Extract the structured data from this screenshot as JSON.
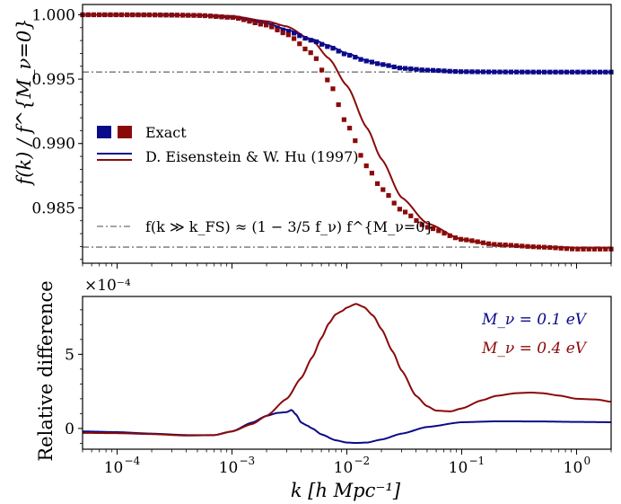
{
  "chart_data": [
    {
      "type": "line",
      "panel": "top",
      "ylabel": "f(k) / f^{M_ν=0}",
      "xscale": "log",
      "xlim": [
        5e-05,
        2.0
      ],
      "ylim": [
        0.9807,
        1.0008
      ],
      "yticks": [
        0.985,
        0.99,
        0.995,
        1.0
      ],
      "ytick_labels": [
        "0.985",
        "0.990",
        "0.995",
        "1.000"
      ],
      "grid": false,
      "legend_position": "center-left",
      "legend": {
        "exact": "Exact",
        "eh": "D. Eisenstein & W. Hu (1997)",
        "asymptote": "f(k ≫ k_FS) ≈ (1 − 3/5 f_ν) f^{M_ν=0}"
      },
      "asymptotes": [
        0.99555,
        0.98195
      ],
      "series": [
        {
          "label": "Exact M_ν = 0.1 eV",
          "color": "#0a0a8a",
          "style": "dotted-squares",
          "x": [
            5e-05,
            0.0001,
            0.0002,
            0.0005,
            0.001,
            0.002,
            0.003,
            0.005,
            0.007,
            0.01,
            0.015,
            0.02,
            0.03,
            0.05,
            0.1,
            0.2,
            0.5,
            1.0,
            2.0
          ],
          "y": [
            1.0,
            1.0,
            1.0,
            0.99996,
            0.9998,
            0.99925,
            0.99875,
            0.998,
            0.9975,
            0.9969,
            0.9964,
            0.99615,
            0.99585,
            0.9957,
            0.99558,
            0.99556,
            0.99555,
            0.99555,
            0.99555
          ]
        },
        {
          "label": "Exact M_ν = 0.4 eV",
          "color": "#8a0a0a",
          "style": "dotted-squares",
          "x": [
            5e-05,
            0.0001,
            0.0002,
            0.0005,
            0.001,
            0.002,
            0.003,
            0.005,
            0.007,
            0.01,
            0.015,
            0.02,
            0.03,
            0.05,
            0.1,
            0.2,
            0.5,
            1.0,
            2.0
          ],
          "y": [
            1.0,
            1.0,
            0.99999,
            0.99995,
            0.9998,
            0.9992,
            0.9985,
            0.997,
            0.9948,
            0.9915,
            0.9882,
            0.9865,
            0.9848,
            0.9835,
            0.98255,
            0.98215,
            0.98195,
            0.9818,
            0.9818
          ]
        },
        {
          "label": "D. Eisenstein & W. Hu (1997) M_ν = 0.1 eV",
          "color": "#0a0a8a",
          "style": "solid",
          "x": [
            5e-05,
            0.0001,
            0.0002,
            0.0005,
            0.001,
            0.002,
            0.003,
            0.005,
            0.007,
            0.01,
            0.015,
            0.02,
            0.03,
            0.05,
            0.1,
            0.2,
            0.5,
            1.0,
            2.0
          ],
          "y": [
            1.0,
            1.0,
            0.99999,
            0.99995,
            0.9998,
            0.99935,
            0.99885,
            0.9981,
            0.9976,
            0.997,
            0.99645,
            0.99615,
            0.99585,
            0.9957,
            0.99558,
            0.99556,
            0.99555,
            0.99555,
            0.99555
          ]
        },
        {
          "label": "D. Eisenstein & W. Hu (1997) M_ν = 0.4 eV",
          "color": "#8a0a0a",
          "style": "solid",
          "x": [
            5e-05,
            0.0001,
            0.0002,
            0.0005,
            0.001,
            0.002,
            0.003,
            0.005,
            0.007,
            0.01,
            0.015,
            0.02,
            0.03,
            0.05,
            0.1,
            0.2,
            0.5,
            1.0,
            2.0
          ],
          "y": [
            1.0,
            1.0,
            1.0,
            0.99997,
            0.9999,
            0.9995,
            0.9991,
            0.998,
            0.9966,
            0.9945,
            0.9912,
            0.9888,
            0.9858,
            0.9838,
            0.98255,
            0.9821,
            0.98195,
            0.9819,
            0.9819
          ]
        }
      ]
    },
    {
      "type": "line",
      "panel": "bottom",
      "ylabel": "Relative difference",
      "xlabel": "k [h Mpc⁻¹]",
      "xscale": "log",
      "xlim": [
        5e-05,
        2.0
      ],
      "ylim": [
        -1.4,
        8.9
      ],
      "y_multiplier": "×10⁻⁴",
      "yticks": [
        0,
        5
      ],
      "ytick_labels": [
        "0",
        "5"
      ],
      "xtick_values": [
        0.0001,
        0.001,
        0.01,
        0.1,
        1.0
      ],
      "xtick_labels": [
        "10",
        "10",
        "10",
        "10",
        "10"
      ],
      "xtick_exponents": [
        "−4",
        "−3",
        "−2",
        "−1",
        "0"
      ],
      "grid": false,
      "legend_position": "top-right",
      "series": [
        {
          "name": "M_ν = 0.1 eV",
          "color": "#0a0a8a",
          "x": [
            5e-05,
            0.0001,
            0.0002,
            0.0004,
            0.0007,
            0.001,
            0.0015,
            0.002,
            0.0025,
            0.003,
            0.0033,
            0.0036,
            0.004,
            0.0045,
            0.005,
            0.006,
            0.008,
            0.01,
            0.012,
            0.015,
            0.02,
            0.03,
            0.05,
            0.1,
            0.2,
            0.5,
            1.0,
            2.0
          ],
          "y": [
            -0.2,
            -0.25,
            -0.35,
            -0.45,
            -0.45,
            -0.2,
            0.4,
            0.85,
            1.05,
            1.1,
            1.25,
            0.95,
            0.4,
            0.2,
            0.0,
            -0.4,
            -0.8,
            -0.95,
            -0.98,
            -0.95,
            -0.75,
            -0.35,
            0.1,
            0.42,
            0.48,
            0.47,
            0.44,
            0.42
          ]
        },
        {
          "name": "M_ν = 0.4 eV",
          "color": "#8a0a0a",
          "x": [
            5e-05,
            0.0001,
            0.0002,
            0.0004,
            0.0007,
            0.001,
            0.0015,
            0.002,
            0.003,
            0.004,
            0.005,
            0.006,
            0.007,
            0.008,
            0.009,
            0.01,
            0.012,
            0.014,
            0.017,
            0.02,
            0.025,
            0.03,
            0.04,
            0.05,
            0.06,
            0.08,
            0.1,
            0.15,
            0.2,
            0.3,
            0.4,
            0.5,
            0.7,
            1.0,
            1.5,
            2.0
          ],
          "y": [
            -0.3,
            -0.32,
            -0.38,
            -0.48,
            -0.45,
            -0.2,
            0.3,
            0.85,
            2.0,
            3.4,
            4.8,
            6.1,
            7.1,
            7.7,
            7.9,
            8.15,
            8.4,
            8.2,
            7.6,
            6.7,
            5.2,
            3.9,
            2.2,
            1.5,
            1.2,
            1.15,
            1.35,
            1.9,
            2.2,
            2.38,
            2.42,
            2.38,
            2.22,
            2.0,
            1.95,
            1.8
          ]
        }
      ]
    }
  ]
}
